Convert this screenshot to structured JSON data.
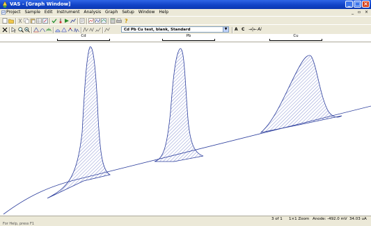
{
  "window": {
    "title": "VAS - [Graph Window]",
    "buttons": {
      "minimize": "_",
      "maximize": "□",
      "close": "×"
    }
  },
  "menu": {
    "items": [
      "Project",
      "Sample",
      "Edit",
      "Instrument",
      "Analysis",
      "Graph",
      "Setup",
      "Window",
      "Help"
    ],
    "mdi_controls": "_ ▫ ×"
  },
  "toolbar2": {
    "dataset_value": "Cd Pb Cu test, blank, Standard",
    "label_a": "A",
    "label_c": "C",
    "arrows_icon": "→|←",
    "sym_icon": "Ai"
  },
  "peak_labels": [
    "Cd",
    "Pb",
    "Cu"
  ],
  "status": {
    "page": "3 of 1",
    "zoom": "1×1 Zoom",
    "anode_label": "Anode:",
    "anode_value": "-492.0 mV",
    "current": "34.03 uA",
    "left_text": "For Help, press F1"
  },
  "colors": {
    "trace": "#2b3d9c",
    "hatch": "#3346b0",
    "titlebar": "#1244c8"
  },
  "chart_data": {
    "type": "line",
    "description_series": "stripping voltammogram with hatched peak areas",
    "peaks": [
      {
        "name": "Cd"
      },
      {
        "name": "Pb"
      },
      {
        "name": "Cu"
      }
    ]
  }
}
